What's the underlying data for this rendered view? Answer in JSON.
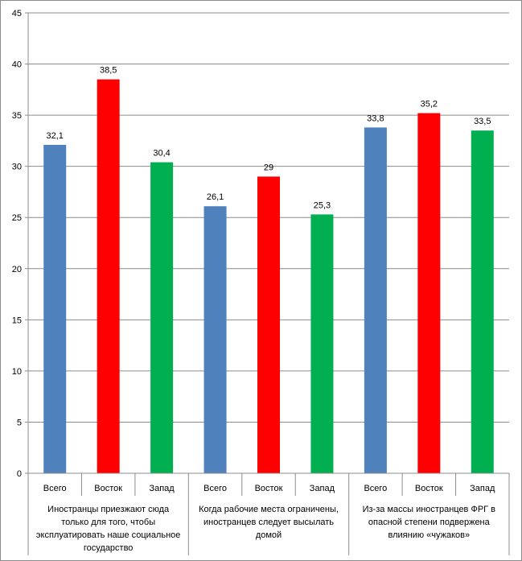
{
  "chart_data": {
    "type": "bar",
    "title": "",
    "xlabel": "",
    "ylabel": "",
    "ylim": [
      0,
      45
    ],
    "yticks": [
      0,
      5,
      10,
      15,
      20,
      25,
      30,
      35,
      40,
      45
    ],
    "grid": true,
    "legend": "none",
    "groups": [
      {
        "label_lines": [
          "Иностранцы приезжают сюда",
          "только для того, чтобы",
          "эксплуатировать наше социальное",
          "государство"
        ],
        "bars": [
          {
            "category": "Всего",
            "value": 32.1,
            "label": "32,1"
          },
          {
            "category": "Восток",
            "value": 38.5,
            "label": "38,5"
          },
          {
            "category": "Запад",
            "value": 30.4,
            "label": "30,4"
          }
        ]
      },
      {
        "label_lines": [
          "Когда рабочие места ограничены,",
          "иностранцев следует высылать",
          "домой"
        ],
        "bars": [
          {
            "category": "Всего",
            "value": 26.1,
            "label": "26,1"
          },
          {
            "category": "Восток",
            "value": 29,
            "label": "29"
          },
          {
            "category": "Запад",
            "value": 25.3,
            "label": "25,3"
          }
        ]
      },
      {
        "label_lines": [
          "Из-за массы иностранцев ФРГ в",
          "опасной степени подвержена",
          "влиянию «чужаков»"
        ],
        "bars": [
          {
            "category": "Всего",
            "value": 33.8,
            "label": "33,8"
          },
          {
            "category": "Восток",
            "value": 35.2,
            "label": "35,2"
          },
          {
            "category": "Запад",
            "value": 33.5,
            "label": "33,5"
          }
        ]
      }
    ],
    "colors": {
      "Всего": "#4f81bd",
      "Восток": "#ff0000",
      "Запад": "#00b050"
    }
  }
}
